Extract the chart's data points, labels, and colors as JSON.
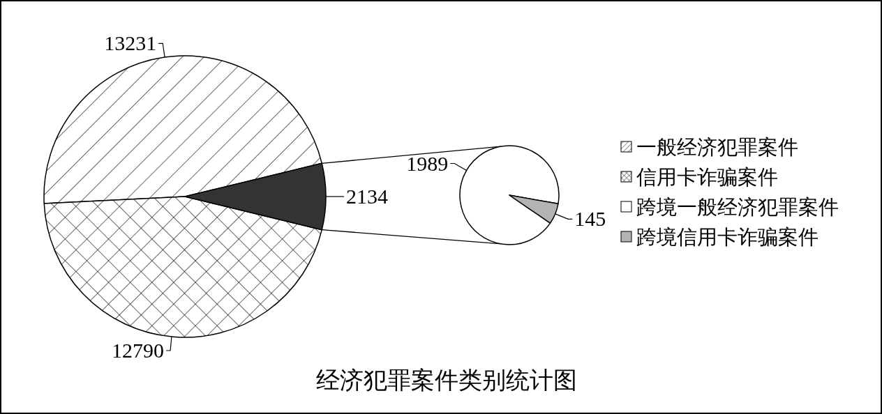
{
  "chart_data": [
    {
      "type": "pie",
      "title": "经济犯罪案件类别统计图",
      "categories": [
        "一般经济犯罪案件",
        "信用卡诈骗案件",
        null
      ],
      "values": [
        13231,
        12790,
        2134
      ],
      "colors": [
        "#ffffff",
        "#ffffff",
        "#333333"
      ],
      "data_labels": true,
      "legend": "right"
    },
    {
      "type": "pie",
      "categories": [
        "跨境一般经济犯罪案件",
        "跨境信用卡诈骗案件"
      ],
      "values": [
        1989,
        145
      ],
      "colors": [
        "#ffffff",
        "#b3b3b3"
      ],
      "data_labels": true,
      "legend": "right"
    }
  ]
}
